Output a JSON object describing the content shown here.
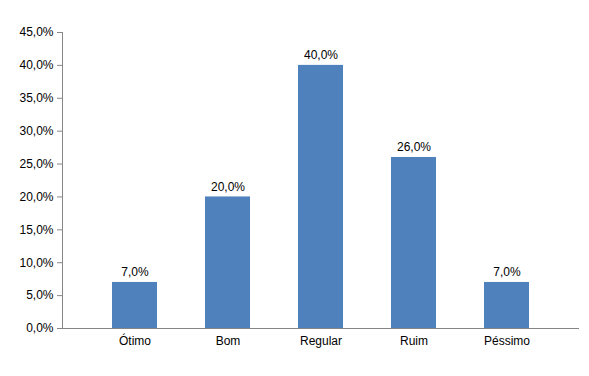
{
  "chart_data": {
    "type": "bar",
    "categories": [
      "Ótimo",
      "Bom",
      "Regular",
      "Ruim",
      "Péssimo"
    ],
    "values": [
      7,
      20,
      40,
      26,
      7
    ],
    "value_labels": [
      "7,0%",
      "20,0%",
      "40,0%",
      "26,0%",
      "7,0%"
    ],
    "color": "#4f81bd",
    "ylim": [
      0,
      45
    ],
    "yticks": [
      {
        "value": 0,
        "label": "0,0%"
      },
      {
        "value": 5,
        "label": "5,0%"
      },
      {
        "value": 10,
        "label": "10,0%"
      },
      {
        "value": 15,
        "label": "15,0%"
      },
      {
        "value": 20,
        "label": "20,0%"
      },
      {
        "value": 25,
        "label": "25,0%"
      },
      {
        "value": 30,
        "label": "30,0%"
      },
      {
        "value": 35,
        "label": "35,0%"
      },
      {
        "value": 40,
        "label": "40,0%"
      },
      {
        "value": 45,
        "label": "45,0%"
      }
    ],
    "grid": false,
    "data_labels": true
  }
}
